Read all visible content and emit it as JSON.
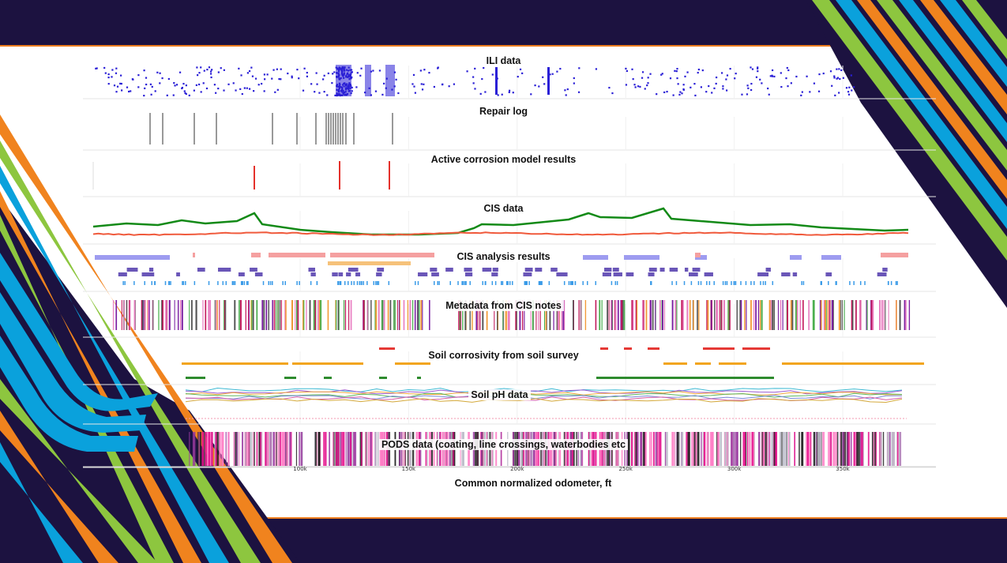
{
  "slide": {
    "colors": {
      "background": "#1c1240",
      "panel": "#ffffff",
      "frame_line": "#ee7d1e",
      "stripe_orange": "#f0831e",
      "stripe_green": "#8dc63f",
      "stripe_blue": "#0aa1dc"
    }
  },
  "chart_data": {
    "type": "stacked-tracks",
    "xlabel": "Common normalized odometer, ft",
    "x_ticks": [
      "100k",
      "150k",
      "200k",
      "250k",
      "300k",
      "350k"
    ],
    "x_tick_values": [
      100000,
      150000,
      200000,
      250000,
      300000,
      350000
    ],
    "xlim": [
      50000,
      380000
    ],
    "panels": [
      {
        "id": "ili",
        "title": "ILI data",
        "type": "scatter",
        "color": "#2a1fd6"
      },
      {
        "id": "repair",
        "title": "Repair log",
        "type": "event-lines",
        "color": "#555555"
      },
      {
        "id": "active",
        "title": "Active corrosion model results",
        "type": "event-lines",
        "color": "#e4312b"
      },
      {
        "id": "cis",
        "title": "CIS data",
        "type": "line",
        "series": [
          {
            "color": "#138a17"
          },
          {
            "color": "#f05a3c"
          }
        ]
      },
      {
        "id": "cis_analysis",
        "title": "CIS analysis results",
        "type": "interval-rows",
        "colors": [
          "#9e9cf0",
          "#f5a0a0",
          "#6a56b8",
          "#f6c27a",
          "#3a9be8"
        ]
      },
      {
        "id": "metadata",
        "title": "Metadata from CIS notes",
        "type": "event-lines",
        "colors": [
          "#c2185b",
          "#e87dc0",
          "#4caf50",
          "#f29b38",
          "#7b1fa2",
          "#555555"
        ]
      },
      {
        "id": "soil",
        "title": "Soil corrosivity from soil survey",
        "type": "interval-rows",
        "colors": [
          "#e53935",
          "#f2a51f",
          "#2e8b2e"
        ]
      },
      {
        "id": "ph",
        "title": "Soil pH data",
        "type": "line",
        "colors": [
          "#3db9d3",
          "#9c5ad0",
          "#f3a83b",
          "#5fb760",
          "#7a8ad8",
          "#d55ea8",
          "#d4a93a"
        ]
      },
      {
        "id": "pods",
        "title": "PODS data (coating, line crossings, waterbodies etc",
        "type": "event-lines",
        "colors": [
          "#e60f8c",
          "#ff77c3",
          "#b9b9c7",
          "#9a3aa0",
          "#222222"
        ]
      }
    ]
  }
}
